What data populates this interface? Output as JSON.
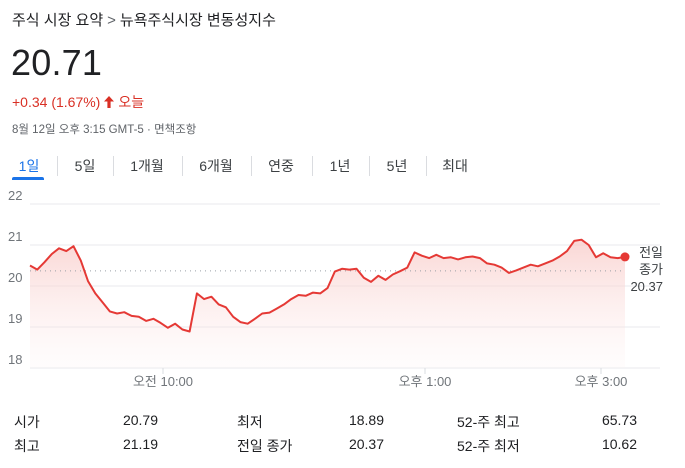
{
  "breadcrumb": {
    "home": "주식 시장 요약",
    "separator": ">",
    "current": "뉴욕주식시장 변동성지수"
  },
  "quote": {
    "price": "20.71",
    "change": "+0.34 (1.67%)",
    "direction_icon": "arrow-up-icon",
    "period": "오늘",
    "timestamp": "8월 12일 오후 3:15 GMT-5",
    "bullet": "·",
    "disclaimer": "면책조항"
  },
  "tabs": [
    {
      "label": "1일",
      "active": true
    },
    {
      "label": "5일",
      "active": false
    },
    {
      "label": "1개월",
      "active": false
    },
    {
      "label": "6개월",
      "active": false
    },
    {
      "label": "연중",
      "active": false
    },
    {
      "label": "1년",
      "active": false
    },
    {
      "label": "5년",
      "active": false
    },
    {
      "label": "최대",
      "active": false
    }
  ],
  "chart_data": {
    "type": "area",
    "y_ticks": [
      "22",
      "21",
      "20",
      "19",
      "18"
    ],
    "ylim": [
      18,
      22
    ],
    "x_ticks": [
      "오전 10:00",
      "오후 1:00",
      "오후 3:00"
    ],
    "reference_label_line1": "전일",
    "reference_label_line2": "종가",
    "reference_value": "20.37",
    "reference_y": 20.37,
    "line_color": "#e53935",
    "fill_color": "#fde7e7",
    "grid": true,
    "series": [
      {
        "values": [
          20.5,
          20.4,
          20.58,
          20.78,
          20.92,
          20.85,
          20.97,
          20.62,
          20.12,
          19.82,
          19.6,
          19.38,
          19.33,
          19.36,
          19.27,
          19.25,
          19.15,
          19.2,
          19.1,
          18.98,
          19.08,
          18.94,
          18.89,
          19.82,
          19.68,
          19.74,
          19.55,
          19.48,
          19.25,
          19.12,
          19.08,
          19.2,
          19.33,
          19.35,
          19.45,
          19.55,
          19.68,
          19.78,
          19.76,
          19.84,
          19.82,
          19.95,
          20.35,
          20.42,
          20.4,
          20.42,
          20.2,
          20.1,
          20.25,
          20.15,
          20.28,
          20.36,
          20.45,
          20.82,
          20.74,
          20.68,
          20.76,
          20.68,
          20.7,
          20.65,
          20.7,
          20.72,
          20.68,
          20.55,
          20.52,
          20.45,
          20.32,
          20.38,
          20.45,
          20.52,
          20.48,
          20.55,
          20.62,
          20.72,
          20.85,
          21.1,
          21.13,
          21.0,
          20.7,
          20.8,
          20.7,
          20.68,
          20.71
        ]
      }
    ]
  },
  "stats": [
    {
      "label": "시가",
      "value": "20.79"
    },
    {
      "label": "최고",
      "value": "21.19"
    },
    {
      "label": "최저",
      "value": "18.89"
    },
    {
      "label": "전일 종가",
      "value": "20.37"
    },
    {
      "label": "52-주 최고",
      "value": "65.73"
    },
    {
      "label": "52-주 최저",
      "value": "10.62"
    }
  ]
}
